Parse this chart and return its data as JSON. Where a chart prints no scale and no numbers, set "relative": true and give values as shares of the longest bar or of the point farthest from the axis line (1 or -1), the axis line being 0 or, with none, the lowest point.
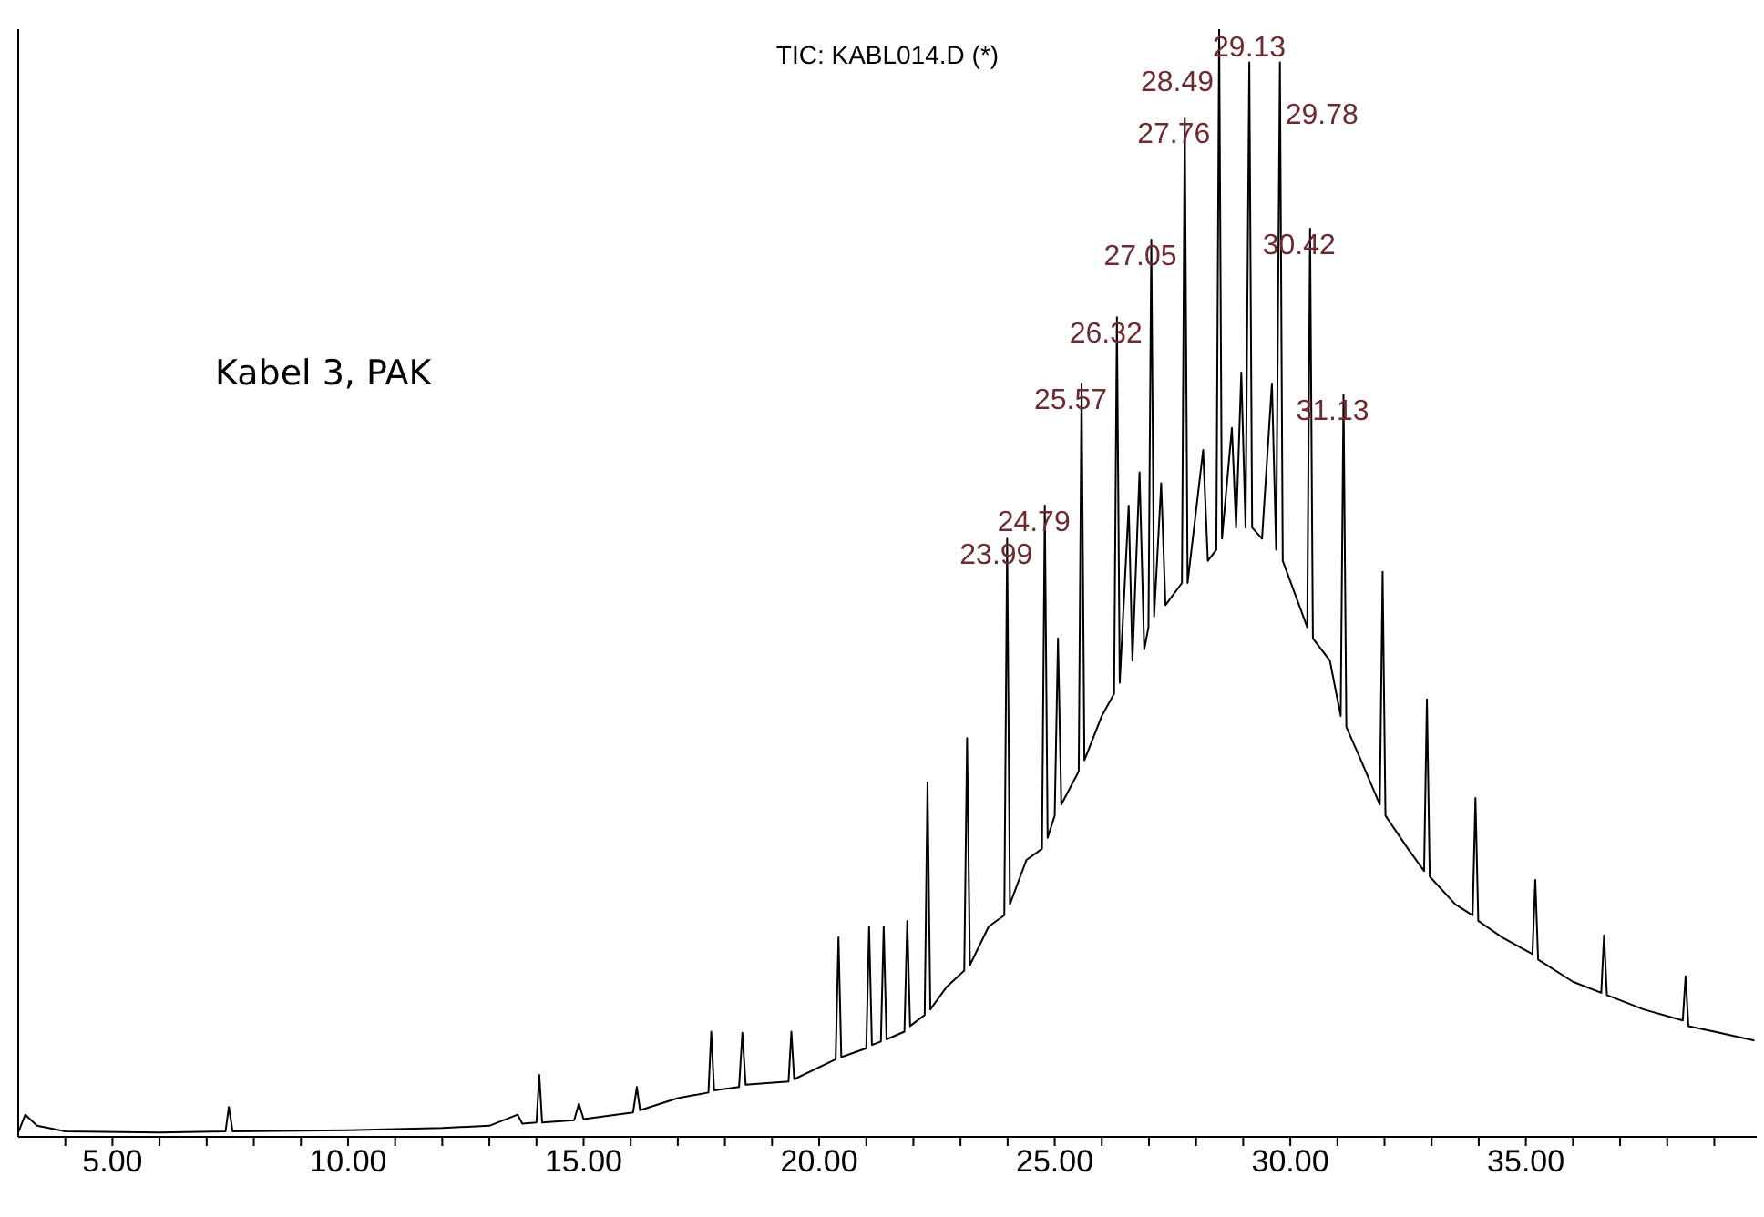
{
  "chart_data": {
    "type": "line",
    "title": "TIC: KABL014.D (*)",
    "relative": true,
    "xlim": [
      3.0,
      39.9
    ],
    "xticks": [
      {
        "value": 4,
        "label": null
      },
      {
        "value": 5,
        "label": "5.00"
      },
      {
        "value": 6,
        "label": null
      },
      {
        "value": 7,
        "label": null
      },
      {
        "value": 8,
        "label": null
      },
      {
        "value": 9,
        "label": null
      },
      {
        "value": 10,
        "label": "10.00"
      },
      {
        "value": 11,
        "label": null
      },
      {
        "value": 12,
        "label": null
      },
      {
        "value": 13,
        "label": null
      },
      {
        "value": 14,
        "label": null
      },
      {
        "value": 15,
        "label": "15.00"
      },
      {
        "value": 16,
        "label": null
      },
      {
        "value": 17,
        "label": null
      },
      {
        "value": 18,
        "label": null
      },
      {
        "value": 19,
        "label": null
      },
      {
        "value": 20,
        "label": "20.00"
      },
      {
        "value": 21,
        "label": null
      },
      {
        "value": 22,
        "label": null
      },
      {
        "value": 23,
        "label": null
      },
      {
        "value": 24,
        "label": null
      },
      {
        "value": 25,
        "label": "25.00"
      },
      {
        "value": 26,
        "label": null
      },
      {
        "value": 27,
        "label": null
      },
      {
        "value": 28,
        "label": null
      },
      {
        "value": 29,
        "label": null
      },
      {
        "value": 30,
        "label": "30.00"
      },
      {
        "value": 31,
        "label": null
      },
      {
        "value": 32,
        "label": null
      },
      {
        "value": 33,
        "label": null
      },
      {
        "value": 34,
        "label": null
      },
      {
        "value": 35,
        "label": "35.00"
      },
      {
        "value": 36,
        "label": null
      },
      {
        "value": 37,
        "label": null
      },
      {
        "value": 38,
        "label": null
      },
      {
        "value": 39,
        "label": null
      }
    ],
    "series": [
      {
        "color": "#000000",
        "x": [
          3.0,
          3.15,
          3.4,
          4,
          6,
          7.4,
          7.47,
          7.55,
          10,
          12,
          13,
          13.6,
          13.7,
          14.0,
          14.06,
          14.12,
          14.8,
          14.9,
          15,
          16.05,
          16.13,
          16.2,
          17.0,
          17.65,
          17.71,
          17.77,
          18.3,
          18.37,
          18.44,
          19.35,
          19.41,
          19.47,
          20.35,
          20.41,
          20.47,
          21.0,
          21.06,
          21.12,
          21.31,
          21.37,
          21.43,
          21.81,
          21.87,
          21.93,
          22.24,
          22.3,
          22.36,
          22.7,
          23.08,
          23.14,
          23.2,
          23.6,
          23.93,
          23.99,
          24.05,
          24.4,
          24.73,
          24.79,
          24.85,
          25.0,
          25.07,
          25.14,
          25.51,
          25.57,
          25.63,
          26.0,
          26.26,
          26.32,
          26.38,
          26.57,
          26.65,
          26.8,
          26.9,
          26.99,
          27.05,
          27.11,
          27.26,
          27.35,
          27.7,
          27.76,
          27.82,
          28.15,
          28.25,
          28.43,
          28.49,
          28.55,
          28.76,
          28.85,
          28.96,
          29.05,
          29.13,
          29.19,
          29.4,
          29.61,
          29.7,
          29.78,
          29.84,
          30.1,
          30.36,
          30.42,
          30.48,
          30.84,
          31.07,
          31.13,
          31.19,
          31.5,
          31.9,
          31.96,
          32.02,
          32.5,
          32.84,
          32.9,
          32.96,
          33.5,
          33.87,
          33.93,
          33.99,
          34.5,
          35.14,
          35.2,
          35.26,
          36.0,
          36.6,
          36.66,
          36.72,
          37.5,
          38.33,
          38.39,
          38.45,
          39.0,
          39.85
        ],
        "values": [
          0.004,
          0.02,
          0.01,
          0.005,
          0.004,
          0.005,
          0.027,
          0.005,
          0.006,
          0.008,
          0.01,
          0.02,
          0.012,
          0.013,
          0.056,
          0.013,
          0.015,
          0.03,
          0.016,
          0.022,
          0.045,
          0.024,
          0.035,
          0.04,
          0.095,
          0.042,
          0.045,
          0.094,
          0.047,
          0.05,
          0.095,
          0.052,
          0.07,
          0.18,
          0.072,
          0.08,
          0.19,
          0.083,
          0.086,
          0.19,
          0.088,
          0.095,
          0.195,
          0.1,
          0.11,
          0.32,
          0.115,
          0.135,
          0.15,
          0.36,
          0.155,
          0.19,
          0.2,
          0.54,
          0.21,
          0.25,
          0.26,
          0.57,
          0.27,
          0.29,
          0.45,
          0.3,
          0.33,
          0.68,
          0.34,
          0.38,
          0.4,
          0.74,
          0.41,
          0.57,
          0.43,
          0.6,
          0.44,
          0.46,
          0.81,
          0.47,
          0.59,
          0.48,
          0.5,
          0.92,
          0.5,
          0.62,
          0.52,
          0.53,
          1.0,
          0.54,
          0.64,
          0.55,
          0.69,
          0.55,
          0.97,
          0.55,
          0.54,
          0.68,
          0.53,
          0.97,
          0.52,
          0.49,
          0.46,
          0.82,
          0.45,
          0.43,
          0.38,
          0.67,
          0.37,
          0.34,
          0.3,
          0.51,
          0.29,
          0.26,
          0.24,
          0.395,
          0.235,
          0.21,
          0.2,
          0.306,
          0.195,
          0.18,
          0.165,
          0.232,
          0.16,
          0.14,
          0.13,
          0.182,
          0.128,
          0.115,
          0.105,
          0.145,
          0.1,
          0.095,
          0.087
        ]
      }
    ],
    "annotations": [
      "Kabel 3, PAK",
      {
        "text": "23.99",
        "x": 23.99,
        "y": 0.54
      },
      {
        "text": "24.79",
        "x": 24.79,
        "y": 0.57
      },
      {
        "text": "25.57",
        "x": 25.57,
        "y": 0.68
      },
      {
        "text": "26.32",
        "x": 26.32,
        "y": 0.74
      },
      {
        "text": "27.05",
        "x": 27.05,
        "y": 0.81
      },
      {
        "text": "27.76",
        "x": 27.76,
        "y": 0.92
      },
      {
        "text": "28.49",
        "x": 28.49,
        "y": 1.0
      },
      {
        "text": "29.13",
        "x": 29.13,
        "y": 0.97
      },
      {
        "text": "29.78",
        "x": 29.78,
        "y": 0.97
      },
      {
        "text": "30.42",
        "x": 30.42,
        "y": 0.82
      },
      {
        "text": "31.13",
        "x": 31.13,
        "y": 0.67
      }
    ]
  }
}
